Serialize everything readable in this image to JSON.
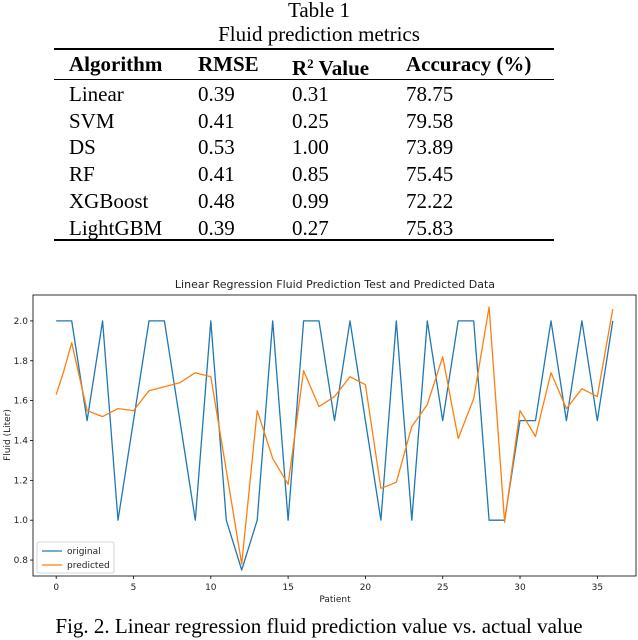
{
  "table": {
    "caption_number": "Table 1",
    "caption_title": "Fluid prediction metrics",
    "headers": [
      "Algorithm",
      "RMSE",
      "Value",
      "Accuracy (%)"
    ],
    "r2_header": {
      "base": "R",
      "sup": "2"
    },
    "rows": [
      [
        "Linear",
        "0.39",
        "0.31",
        "78.75"
      ],
      [
        "SVM",
        "0.41",
        "0.25",
        "79.58"
      ],
      [
        "DS",
        "0.53",
        "1.00",
        "73.89"
      ],
      [
        "RF",
        "0.41",
        "0.85",
        "75.45"
      ],
      [
        "XGBoost",
        "0.48",
        "0.99",
        "72.22"
      ],
      [
        "LightGBM",
        "0.39",
        "0.27",
        "75.83"
      ]
    ]
  },
  "chart_data": {
    "type": "line",
    "title": "Linear Regression Fluid Prediction Test and Predicted Data",
    "xlabel": "Patient",
    "ylabel": "Fluid (Liter)",
    "xlim": [
      -1.5,
      37.5
    ],
    "ylim": [
      0.72,
      2.13
    ],
    "xticks": [
      0,
      5,
      10,
      15,
      20,
      25,
      30,
      35
    ],
    "yticks": [
      0.8,
      1.0,
      1.2,
      1.4,
      1.6,
      1.8,
      2.0
    ],
    "grid": false,
    "legend_position": "lower-left",
    "series": [
      {
        "name": "original",
        "color": "#1f77b4",
        "x": [
          0,
          1,
          2,
          3,
          4,
          5,
          6,
          7,
          8,
          9,
          10,
          11,
          12,
          13,
          14,
          15,
          16,
          17,
          18,
          19,
          20,
          21,
          22,
          23,
          24,
          25,
          26,
          27,
          28,
          29,
          30,
          31,
          32,
          33,
          34,
          35,
          36
        ],
        "y": [
          2.0,
          2.0,
          1.5,
          2.0,
          1.0,
          1.5,
          2.0,
          2.0,
          1.5,
          1.0,
          2.0,
          1.0,
          0.75,
          1.0,
          2.0,
          1.0,
          2.0,
          2.0,
          1.5,
          2.0,
          1.5,
          1.0,
          2.0,
          1.0,
          2.0,
          1.5,
          2.0,
          2.0,
          1.0,
          1.0,
          1.5,
          1.5,
          2.0,
          1.5,
          2.0,
          1.5,
          2.0
        ]
      },
      {
        "name": "predicted",
        "color": "#ff7f0e",
        "x": [
          0,
          0.5,
          1,
          2,
          3,
          4,
          5,
          6,
          7,
          8,
          9,
          10,
          11,
          12,
          13,
          14,
          15,
          16,
          17,
          18,
          19,
          20,
          21,
          22,
          23,
          24,
          25,
          26,
          27,
          28,
          29,
          30,
          31,
          32,
          33,
          34,
          35,
          36
        ],
        "y": [
          1.63,
          1.75,
          1.89,
          1.55,
          1.52,
          1.56,
          1.55,
          1.65,
          1.67,
          1.69,
          1.74,
          1.72,
          1.25,
          0.78,
          1.55,
          1.31,
          1.18,
          1.75,
          1.57,
          1.62,
          1.72,
          1.68,
          1.16,
          1.19,
          1.47,
          1.58,
          1.82,
          1.41,
          1.61,
          2.07,
          0.99,
          1.55,
          1.42,
          1.74,
          1.56,
          1.66,
          1.62,
          2.06
        ]
      }
    ]
  },
  "figure_caption": "Fig. 2. Linear regression fluid prediction value vs. actual value"
}
